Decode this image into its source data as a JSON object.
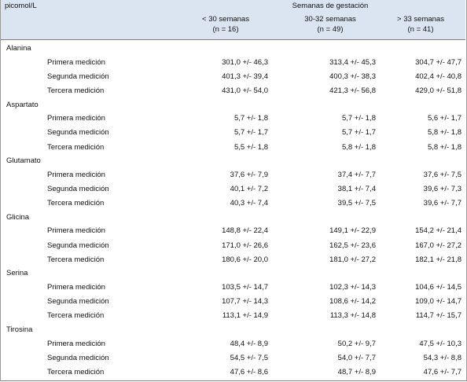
{
  "header": {
    "unit": "picomol/L",
    "group_title": "Semanas de gestación",
    "columns": [
      {
        "label": "< 30 semanas",
        "n": "(n = 16)"
      },
      {
        "label": "30-32 semanas",
        "n": "(n = 49)"
      },
      {
        "label": "> 33 semanas",
        "n": "(n = 41)"
      }
    ]
  },
  "table": {
    "groups": [
      {
        "name": "Alanina",
        "rows": [
          {
            "label": "Primera medición",
            "values": [
              "301,0 +/- 46,3",
              "313,4 +/- 45,3",
              "304,7 +/- 47,7"
            ]
          },
          {
            "label": "Segunda medición",
            "values": [
              "401,3 +/- 39,4",
              "400,3 +/- 38,3",
              "402,4 +/- 40,8"
            ]
          },
          {
            "label": "Tercera medición",
            "values": [
              "431,0 +/- 54,0",
              "421,3 +/- 56,8",
              "429,0 +/- 51,8"
            ]
          }
        ]
      },
      {
        "name": "Aspartato",
        "rows": [
          {
            "label": "Primera medición",
            "values": [
              "5,7 +/- 1,8",
              "5,7 +/- 1,8",
              "5,6 +/- 1,7"
            ]
          },
          {
            "label": "Segunda medición",
            "values": [
              "5,7 +/- 1,7",
              "5,7 +/- 1,7",
              "5,8 +/- 1,8"
            ]
          },
          {
            "label": "Tercera medición",
            "values": [
              "5,5 +/- 1,8",
              "5,8 +/- 1,8",
              "5,8 +/- 1,8"
            ]
          }
        ]
      },
      {
        "name": "Glutamato",
        "rows": [
          {
            "label": "Primera medición",
            "values": [
              "37,6 +/- 7,9",
              "37,4 +/- 7,7",
              "37,6 +/- 7,5"
            ]
          },
          {
            "label": "Segunda medición",
            "values": [
              "40,1 +/- 7,2",
              "38,1 +/- 7,4",
              "39,6 +/- 7,3"
            ]
          },
          {
            "label": "Tercera medición",
            "values": [
              "40,3 +/- 7,4",
              "39,5 +/- 7,5",
              "39,6 +/- 7,7"
            ]
          }
        ]
      },
      {
        "name": "Glicina",
        "rows": [
          {
            "label": "Primera medición",
            "values": [
              "148,8 +/- 22,4",
              "149,1 +/- 22,9",
              "154,2 +/- 21,4"
            ]
          },
          {
            "label": "Segunda medición",
            "values": [
              "171,0 +/- 26,6",
              "162,5 +/- 23,6",
              "167,0 +/- 27,2"
            ]
          },
          {
            "label": "Tercera medición",
            "values": [
              "180,6 +/- 20,0",
              "181,0 +/- 27,2",
              "182,1 +/- 21,8"
            ]
          }
        ]
      },
      {
        "name": "Serina",
        "rows": [
          {
            "label": "Primera medición",
            "values": [
              "103,5 +/- 14,7",
              "102,3 +/- 14,3",
              "104,6 +/- 14,5"
            ]
          },
          {
            "label": "Segunda medición",
            "values": [
              "107,7 +/- 14,3",
              "108,6 +/- 14,2",
              "109,0 +/- 14,7"
            ]
          },
          {
            "label": "Tercera medición",
            "values": [
              "113,1 +/- 14,9",
              "113,3 +/- 14,8",
              "114,7 +/- 15,7"
            ]
          }
        ]
      },
      {
        "name": "Tirosina",
        "rows": [
          {
            "label": "Primera medición",
            "values": [
              "48,4 +/- 8,9",
              "50,2 +/- 9,7",
              "47,5 +/- 10,3"
            ]
          },
          {
            "label": "Segunda medición",
            "values": [
              "54,5 +/- 7,5",
              "54,0 +/- 7,7",
              "54,3 +/- 8,8"
            ]
          },
          {
            "label": "Tercera medición",
            "values": [
              "47,6 +/- 8,6",
              "48,7 +/- 8,9",
              "47,6 +/- 7,7"
            ]
          }
        ]
      }
    ]
  }
}
